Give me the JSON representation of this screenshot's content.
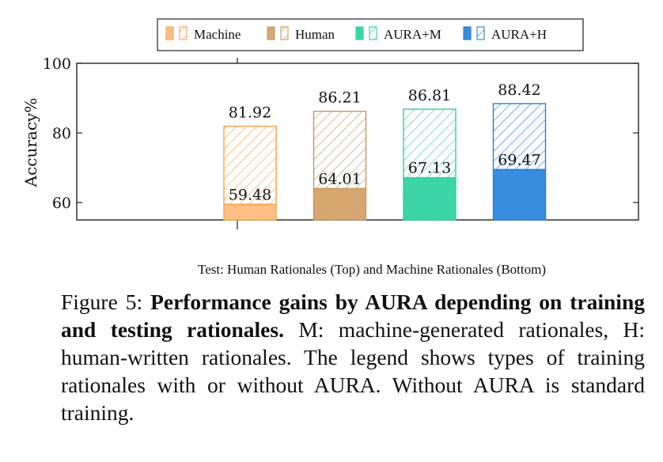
{
  "chart_data": {
    "type": "bar",
    "stacked": true,
    "xlabel": "Test: Human Rationales (Top) and Machine Rationales (Bottom)",
    "ylabel": "Accuracy%",
    "ylim": [
      55,
      100
    ],
    "yticks": [
      "60",
      "80",
      "100"
    ],
    "legend_position": "top-center",
    "series": [
      {
        "name": "Machine",
        "bottom_label": "59.48",
        "top_label": "81.92",
        "bottom": 59.48,
        "top": 81.92,
        "color": "#f7a24a",
        "fill": "#ffc48c"
      },
      {
        "name": "Human",
        "bottom_label": "64.01",
        "top_label": "86.21",
        "bottom": 64.01,
        "top": 86.21,
        "color": "#c8965e",
        "fill": "#d9a974"
      },
      {
        "name": "AURA+M",
        "bottom_label": "67.13",
        "top_label": "86.81",
        "bottom": 67.13,
        "top": 86.81,
        "color": "#2fd0a0",
        "fill": "#3ed6a6"
      },
      {
        "name": "AURA+H",
        "bottom_label": "69.47",
        "top_label": "88.42",
        "bottom": 69.47,
        "top": 88.42,
        "color": "#2a7ed6",
        "fill": "#3a8ee0"
      }
    ]
  },
  "caption": {
    "label": "Figure 5:",
    "bold": "Performance gains by AURA depending on training and testing rationales.",
    "rest": "M: machine-generated rationales, H: human-written rationales. The legend shows types of training rationales with or without AURA. Without AURA is standard training."
  }
}
